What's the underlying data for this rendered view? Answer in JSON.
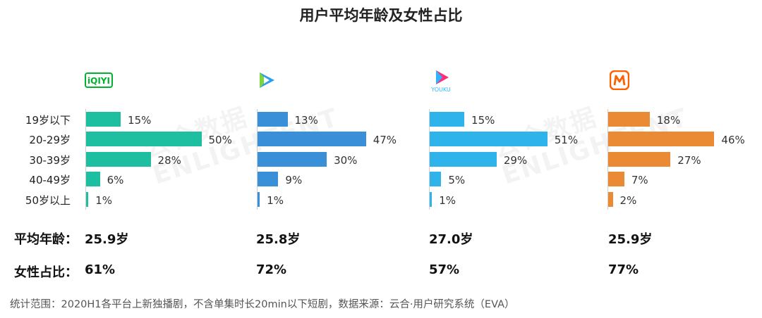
{
  "title": "用户平均年龄及女性占比",
  "watermark": {
    "cn": "云合数据",
    "en": "ENLIGHTENT"
  },
  "chart_data": {
    "type": "bar",
    "orientation": "horizontal",
    "title": "用户平均年龄及女性占比",
    "categories": [
      "19岁以下",
      "20-29岁",
      "30-39岁",
      "40-49岁",
      "50岁以上"
    ],
    "unit": "%",
    "series": [
      {
        "platform_logo": "iqiyi-logo",
        "color": "#1dbfa0",
        "values": [
          15,
          50,
          28,
          6,
          1
        ]
      },
      {
        "platform_logo": "tencent-video-logo",
        "color": "#3a8fd9",
        "values": [
          13,
          47,
          30,
          9,
          1
        ]
      },
      {
        "platform_logo": "youku-logo",
        "color": "#2eb3ea",
        "values": [
          15,
          51,
          29,
          5,
          1
        ]
      },
      {
        "platform_logo": "mango-tv-logo",
        "color": "#ea8a34",
        "values": [
          18,
          46,
          27,
          7,
          2
        ]
      }
    ]
  },
  "stats": {
    "avg_age_label": "平均年龄：",
    "female_ratio_label": "女性占比：",
    "avg_age": [
      "25.9岁",
      "25.8岁",
      "27.0岁",
      "25.9岁"
    ],
    "female_ratio": [
      "61%",
      "72%",
      "57%",
      "77%"
    ]
  },
  "logos": {
    "iqiyi_text": "iQIYI",
    "youku_text": "YOUKU"
  },
  "note": "统计范围：2020H1各平台上新独播剧，不含单集时长20min以下短剧，数据来源：云合·用户研究系统（EVA）"
}
